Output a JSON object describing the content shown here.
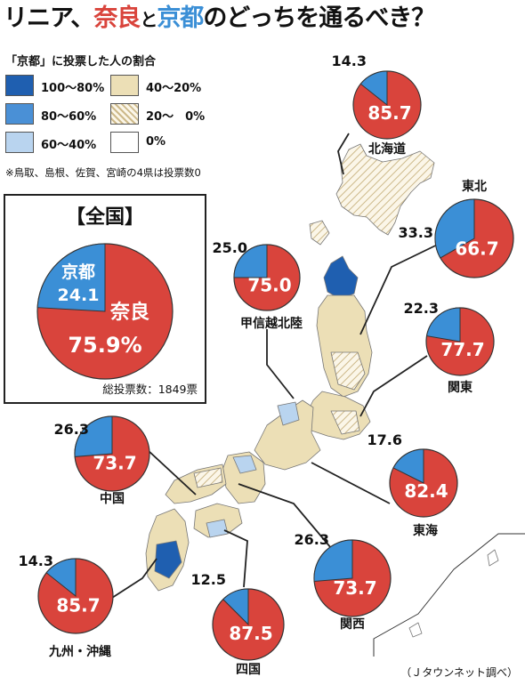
{
  "title": {
    "part1": "リニア、",
    "part2": "奈良",
    "part3": "と",
    "part4": "京都",
    "part5": "のどっちを通るべき？"
  },
  "legend": {
    "title": "「京都」に投票した人の割合",
    "items": [
      {
        "label": "100〜80%",
        "color": "#1f5fb0",
        "pattern": "solid"
      },
      {
        "label": "40〜20%",
        "color": "#ecdfb6",
        "pattern": "solid"
      },
      {
        "label": "80〜60%",
        "color": "#4a90d6",
        "pattern": "solid"
      },
      {
        "label": "20〜　0%",
        "color": "#ecdfb6",
        "pattern": "hatch"
      },
      {
        "label": "60〜40%",
        "color": "#b9d4ef",
        "pattern": "solid"
      },
      {
        "label": "0%",
        "color": "#ffffff",
        "pattern": "solid"
      }
    ],
    "note": "※鳥取、島根、佐賀、宮崎の4県は投票数0"
  },
  "national": {
    "title": "【全国】",
    "kyoto_label": "京都",
    "kyoto_value": "24.1",
    "nara_label": "奈良",
    "nara_value": "75.9%",
    "total": "総投票数：1849票"
  },
  "chart_data": {
    "type": "pie",
    "colors": {
      "kyoto": "#3b8fd6",
      "nara": "#d9443c"
    },
    "national": {
      "kyoto": 24.1,
      "nara": 75.9
    },
    "regions": [
      {
        "name": "北海道",
        "kyoto": 14.3,
        "nara": 85.7
      },
      {
        "name": "東北",
        "kyoto": 33.3,
        "nara": 66.7
      },
      {
        "name": "甲信越北陸",
        "kyoto": 25.0,
        "nara": 75.0
      },
      {
        "name": "関東",
        "kyoto": 22.3,
        "nara": 77.7
      },
      {
        "name": "東海",
        "kyoto": 17.6,
        "nara": 82.4
      },
      {
        "name": "中国",
        "kyoto": 26.3,
        "nara": 73.7
      },
      {
        "name": "関西",
        "kyoto": 26.3,
        "nara": 73.7
      },
      {
        "name": "四国",
        "kyoto": 12.5,
        "nara": 87.5
      },
      {
        "name": "九州・沖縄",
        "kyoto": 14.3,
        "nara": 85.7
      }
    ]
  },
  "credit": "（Ｊタウンネット調べ）"
}
